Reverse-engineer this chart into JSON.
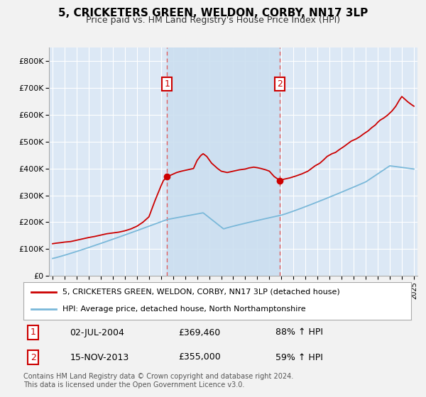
{
  "title": "5, CRICKETERS GREEN, WELDON, CORBY, NN17 3LP",
  "subtitle": "Price paid vs. HM Land Registry's House Price Index (HPI)",
  "ytick_labels": [
    "£0",
    "£100K",
    "£200K",
    "£300K",
    "£400K",
    "£500K",
    "£600K",
    "£700K",
    "£800K"
  ],
  "yticks": [
    0,
    100000,
    200000,
    300000,
    400000,
    500000,
    600000,
    700000,
    800000
  ],
  "ylim": [
    0,
    850000
  ],
  "xlim_start": 1994.7,
  "xlim_end": 2025.3,
  "xtick_years": [
    1995,
    1996,
    1997,
    1998,
    1999,
    2000,
    2001,
    2002,
    2003,
    2004,
    2005,
    2006,
    2007,
    2008,
    2009,
    2010,
    2011,
    2012,
    2013,
    2014,
    2015,
    2016,
    2017,
    2018,
    2019,
    2020,
    2021,
    2022,
    2023,
    2024,
    2025
  ],
  "vline1_x": 2004.5,
  "vline2_x": 2013.88,
  "sale1_date": "02-JUL-2004",
  "sale1_price": "£369,460",
  "sale1_hpi": "88% ↑ HPI",
  "sale2_date": "15-NOV-2013",
  "sale2_price": "£355,000",
  "sale2_hpi": "59% ↑ HPI",
  "legend_line1": "5, CRICKETERS GREEN, WELDON, CORBY, NN17 3LP (detached house)",
  "legend_line2": "HPI: Average price, detached house, North Northamptonshire",
  "footnote": "Contains HM Land Registry data © Crown copyright and database right 2024.\nThis data is licensed under the Open Government Licence v3.0.",
  "hpi_color": "#7ab8d9",
  "price_color": "#cc0000",
  "plot_bg": "#dce8f5",
  "fig_bg": "#f0f0f0",
  "grid_color": "#ffffff",
  "vline_color": "#e06060",
  "span_color": "#ccdff0"
}
